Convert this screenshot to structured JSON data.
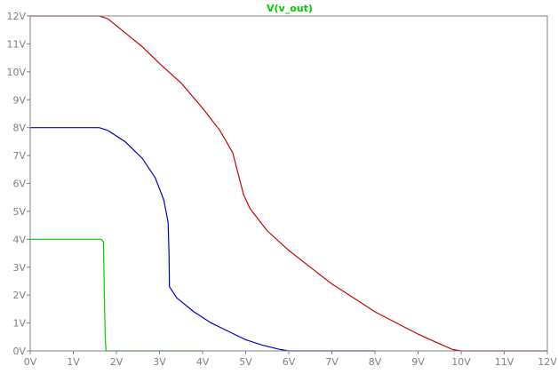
{
  "chart_data": {
    "type": "line",
    "title": "V(v_out)",
    "title_color": "#00cc00",
    "xlabel": "",
    "ylabel": "",
    "xlim": [
      0,
      12
    ],
    "ylim": [
      0,
      12
    ],
    "grid": false,
    "x_ticks": [
      "0V",
      "1V",
      "2V",
      "3V",
      "4V",
      "5V",
      "6V",
      "7V",
      "8V",
      "9V",
      "10V",
      "11V",
      "12V"
    ],
    "y_ticks": [
      "0V",
      "1V",
      "2V",
      "3V",
      "4V",
      "5V",
      "6V",
      "7V",
      "8V",
      "9V",
      "10V",
      "11V",
      "12V"
    ],
    "series": [
      {
        "color": "#cc0000",
        "points": [
          [
            0,
            12
          ],
          [
            1.6,
            12
          ],
          [
            1.8,
            11.9
          ],
          [
            2.2,
            11.4
          ],
          [
            2.6,
            10.9
          ],
          [
            3.0,
            10.3
          ],
          [
            3.5,
            9.6
          ],
          [
            4.0,
            8.7
          ],
          [
            4.4,
            7.9
          ],
          [
            4.7,
            7.1
          ],
          [
            4.85,
            6.2
          ],
          [
            4.95,
            5.6
          ],
          [
            5.1,
            5.1
          ],
          [
            5.5,
            4.3
          ],
          [
            6.0,
            3.6
          ],
          [
            6.5,
            3.0
          ],
          [
            7.0,
            2.4
          ],
          [
            7.5,
            1.9
          ],
          [
            8.0,
            1.4
          ],
          [
            8.5,
            1.0
          ],
          [
            9.0,
            0.6
          ],
          [
            9.5,
            0.25
          ],
          [
            9.8,
            0.05
          ],
          [
            10.0,
            0
          ],
          [
            12,
            0
          ]
        ]
      },
      {
        "color": "#0000cc",
        "points": [
          [
            0,
            8
          ],
          [
            1.6,
            8
          ],
          [
            1.8,
            7.9
          ],
          [
            2.2,
            7.5
          ],
          [
            2.6,
            6.9
          ],
          [
            2.9,
            6.2
          ],
          [
            3.1,
            5.4
          ],
          [
            3.2,
            4.6
          ],
          [
            3.22,
            3.5
          ],
          [
            3.23,
            2.3
          ],
          [
            3.4,
            1.9
          ],
          [
            3.8,
            1.4
          ],
          [
            4.2,
            1.0
          ],
          [
            4.6,
            0.7
          ],
          [
            5.0,
            0.4
          ],
          [
            5.4,
            0.2
          ],
          [
            5.8,
            0.05
          ],
          [
            6.0,
            0
          ],
          [
            8,
            0
          ]
        ]
      },
      {
        "color": "#00cc00",
        "points": [
          [
            0,
            4
          ],
          [
            1.65,
            4
          ],
          [
            1.7,
            3.9
          ],
          [
            1.72,
            2.0
          ],
          [
            1.74,
            0.5
          ],
          [
            1.76,
            0
          ],
          [
            4,
            0
          ]
        ]
      }
    ]
  }
}
